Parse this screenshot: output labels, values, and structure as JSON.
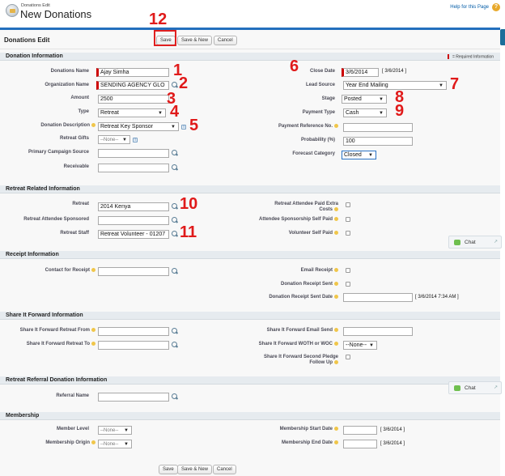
{
  "header": {
    "breadcrumb": "Donations Edit",
    "title": "New Donations",
    "help_link": "Help for this Page",
    "help_icon": "?"
  },
  "edit_bar": {
    "title": "Donations Edit",
    "save": "Save",
    "save_new": "Save & New",
    "cancel": "Cancel"
  },
  "sections": {
    "donation_info": "Donation Information",
    "required_info": "= Required Information",
    "retreat_related": "Retreat Related Information",
    "receipt": "Receipt Information",
    "share_forward": "Share It Forward Information",
    "retreat_referral": "Retreat Referral Donation Information",
    "membership": "Membership"
  },
  "donation": {
    "donations_name_label": "Donations Name",
    "donations_name_value": "Ajay Simha",
    "organization_label": "Organization Name",
    "organization_value": "SENDING AGENCY GLO",
    "amount_label": "Amount",
    "amount_value": "2500",
    "type_label": "Type",
    "type_value": "Retreat",
    "description_label": "Donation Description",
    "description_value": "Retreat Key Sponsor",
    "retreat_gifts_label": "Retreat Gifts",
    "retreat_gifts_value": "--None--",
    "primary_campaign_label": "Primary Campaign Source",
    "primary_campaign_value": "",
    "receivable_label": "Receivable",
    "receivable_value": "",
    "close_date_label": "Close Date",
    "close_date_value": "3/6/2014",
    "close_date_link": "[ 3/6/2014 ]",
    "lead_source_label": "Lead Source",
    "lead_source_value": "Year End Mailing",
    "stage_label": "Stage",
    "stage_value": "Posted",
    "payment_type_label": "Payment Type",
    "payment_type_value": "Cash",
    "payment_ref_label": "Payment Reference No.",
    "payment_ref_value": "",
    "probability_label": "Probability (%)",
    "probability_value": "100",
    "forecast_label": "Forecast Category",
    "forecast_value": "Closed"
  },
  "retreat": {
    "retreat_label": "Retreat",
    "retreat_value": "2014 Kenya",
    "sponsored_label": "Retreat Attendee Sponsored",
    "sponsored_value": "",
    "staff_label": "Retreat Staff",
    "staff_value": "Retreat Volunteer - 01207",
    "extra_costs_label_1": "Retreat Attendee Paid Extra",
    "extra_costs_label_2": "Costs",
    "self_paid_label": "Attendee Sponsorship Self Paid",
    "volunteer_self_paid_label": "Volunteer Self Paid"
  },
  "receipt": {
    "contact_label": "Contact for Receipt",
    "contact_value": "",
    "email_receipt_label": "Email Receipt",
    "receipt_sent_label": "Donation Receipt Sent",
    "receipt_sent_date_label": "Donation Receipt Sent Date",
    "receipt_sent_date_value": "",
    "receipt_sent_date_link": "[ 3/6/2014 7:34 AM ]"
  },
  "share": {
    "from_label": "Share It Forward Retreat From",
    "from_value": "",
    "to_label": "Share It Forward Retreat To",
    "to_value": "",
    "email_send_label": "Share It Forward Email Send",
    "email_send_value": "",
    "woth_label": "Share It Forward WOTH or WOC",
    "woth_value": "--None--",
    "second_pledge_label_1": "Share It Forward Second Pledge",
    "second_pledge_label_2": "Follow Up"
  },
  "referral": {
    "referral_name_label": "Referral Name",
    "referral_name_value": ""
  },
  "membership": {
    "level_label": "Member Level",
    "level_value": "--None--",
    "origin_label": "Membership Origin",
    "origin_value": "--None--",
    "start_label": "Membership Start Date",
    "start_value": "",
    "start_link": "[ 3/6/2014 ]",
    "end_label": "Membership End Date",
    "end_value": "",
    "end_link": "[ 3/6/2014 ]"
  },
  "chat": {
    "label": "Chat"
  },
  "annotations": [
    "1",
    "2",
    "3",
    "4",
    "5",
    "6",
    "7",
    "8",
    "9",
    "10",
    "11",
    "12"
  ],
  "colors": {
    "annotation_red": "#e01a1a",
    "header_blue": "#236fbd",
    "required_red": "#cc0000",
    "section_bg": "#e6ebef"
  }
}
